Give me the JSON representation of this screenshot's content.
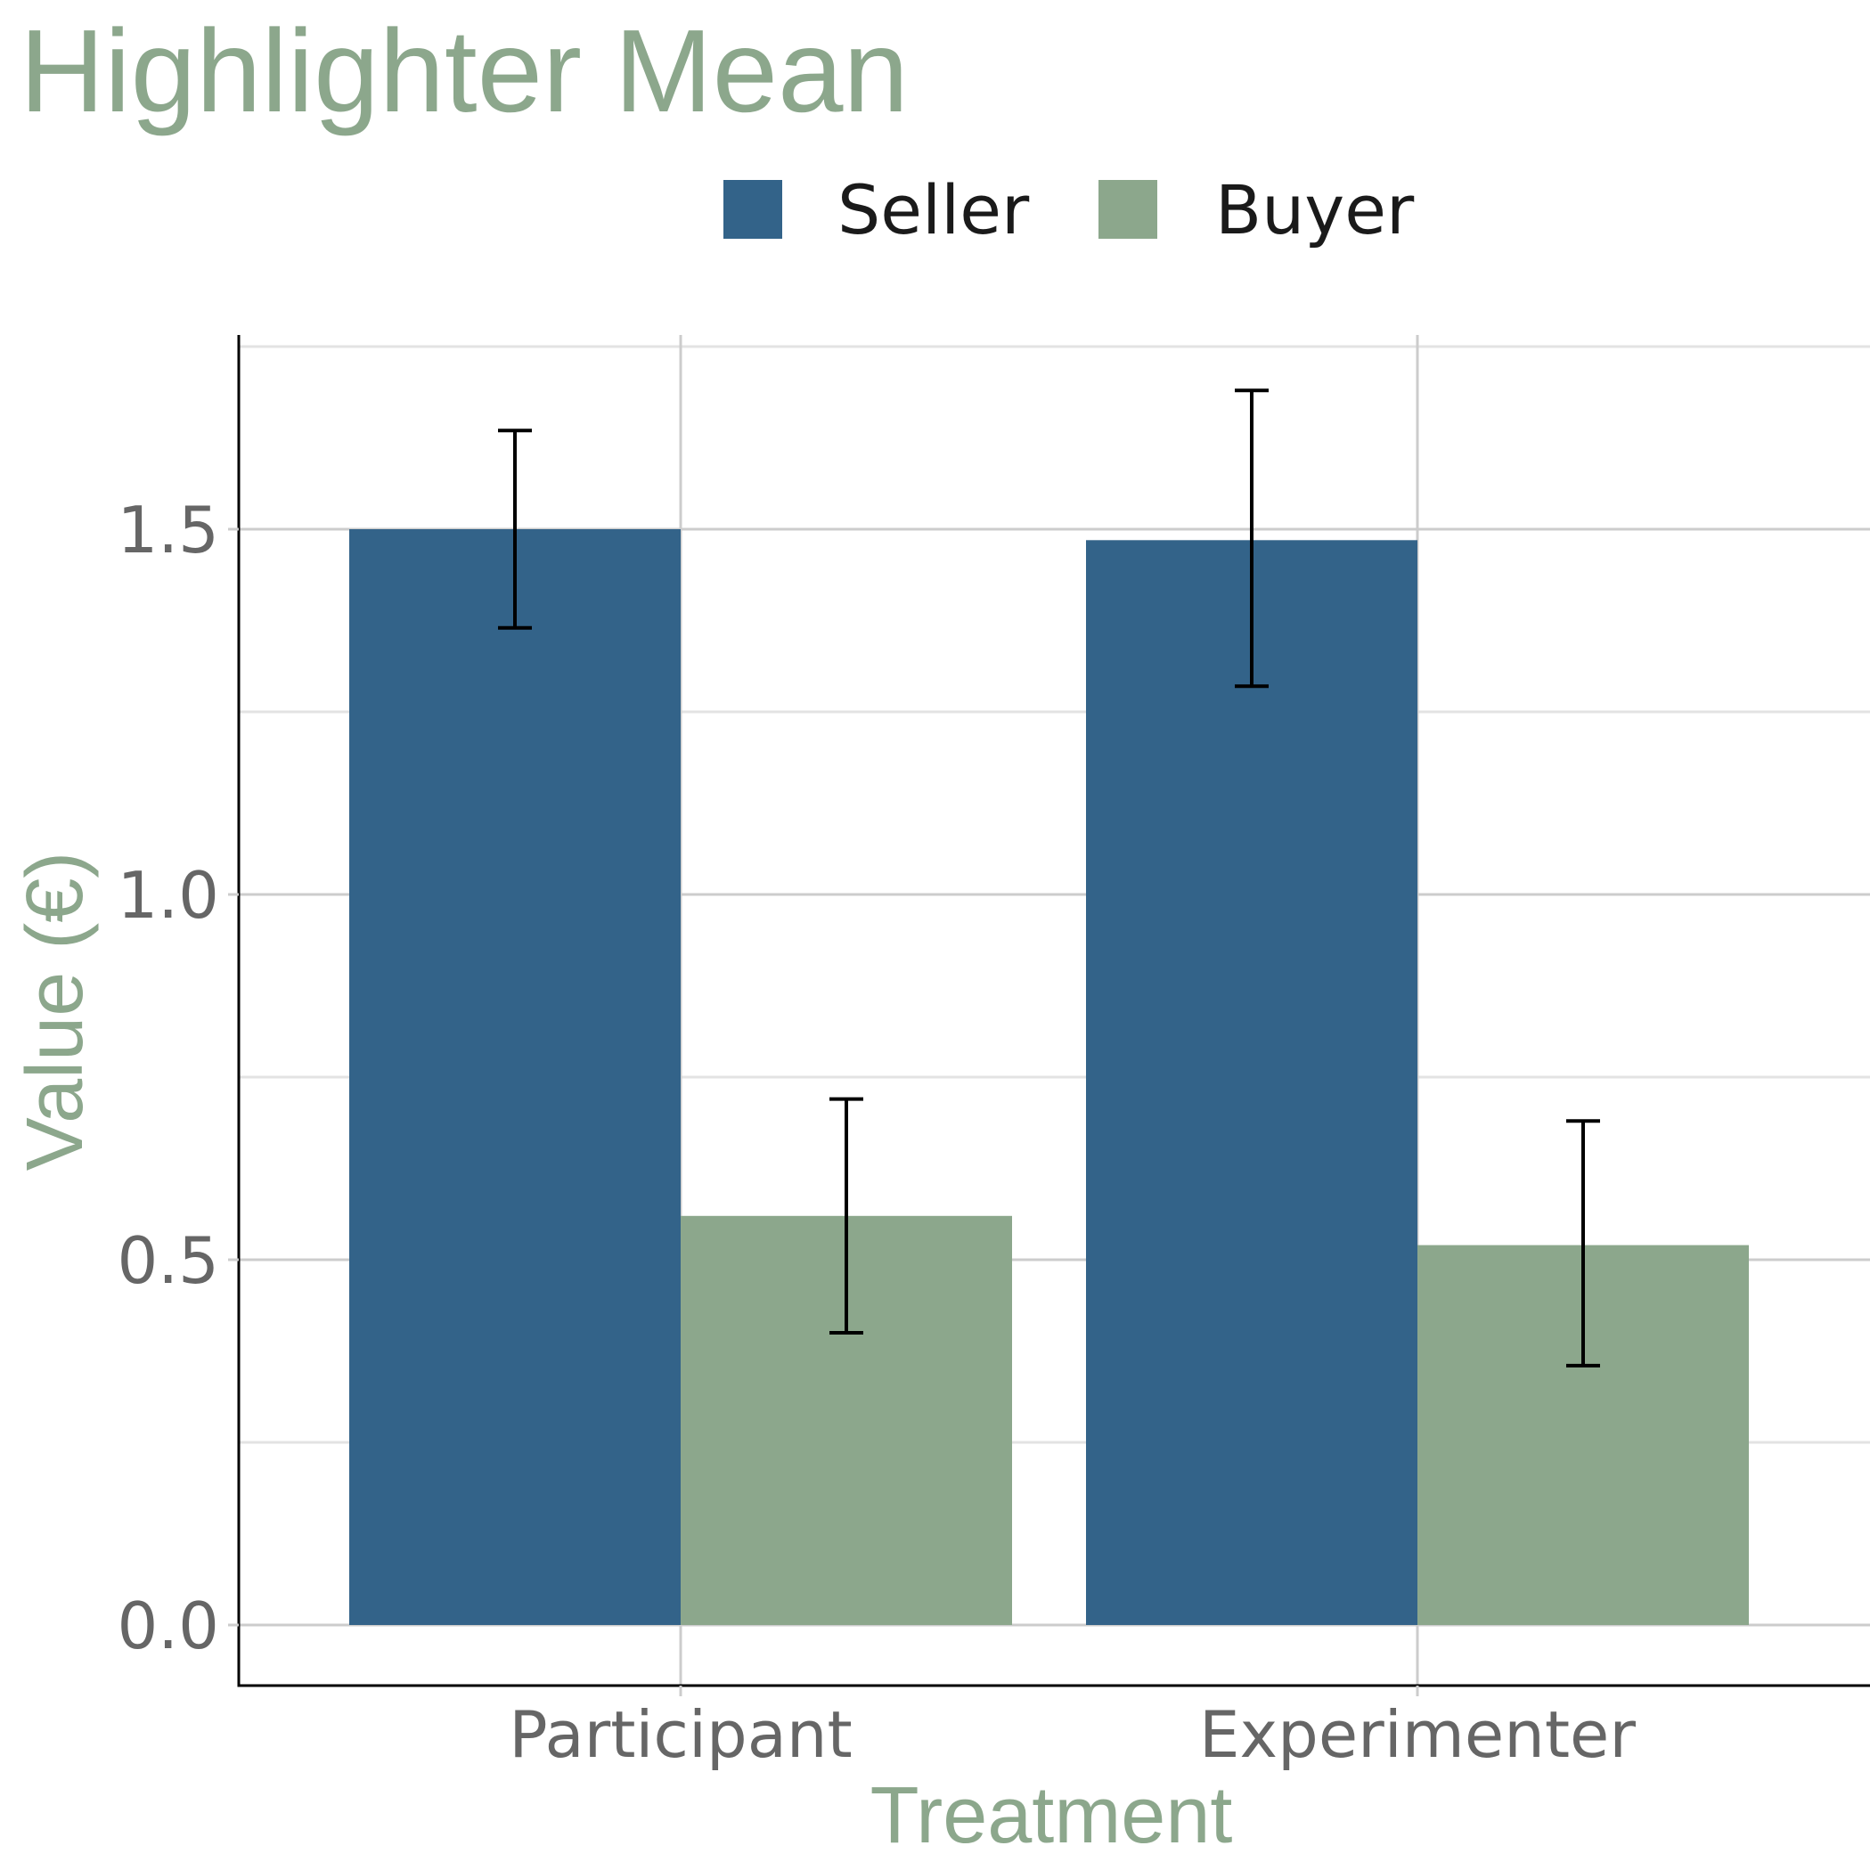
{
  "colors": {
    "accent": "#8CA78C",
    "seller": "#336389",
    "buyer": "#8CA78C",
    "errorbar": "#000000",
    "grid_major": "#cccccc",
    "grid_minor": "#e3e3e3",
    "axis_line": "#000000"
  },
  "chart_data": {
    "type": "bar",
    "title": "Highlighter Mean",
    "xlabel": "Treatment",
    "ylabel": "Value (€)",
    "categories": [
      "Participant",
      "Experimenter"
    ],
    "series": [
      {
        "name": "Seller",
        "values": [
          1.5,
          1.485
        ],
        "error_low": [
          1.365,
          1.285
        ],
        "error_high": [
          1.635,
          1.69
        ]
      },
      {
        "name": "Buyer",
        "values": [
          0.56,
          0.52
        ],
        "error_low": [
          0.4,
          0.355
        ],
        "error_high": [
          0.72,
          0.69
        ]
      }
    ],
    "ylim": [
      -0.08,
      1.78
    ],
    "yticks": [
      "0.0",
      "0.5",
      "1.0",
      "1.5"
    ],
    "ytick_values": [
      0,
      0.5,
      1.0,
      1.5
    ],
    "grid": true,
    "legend_position": "top"
  }
}
